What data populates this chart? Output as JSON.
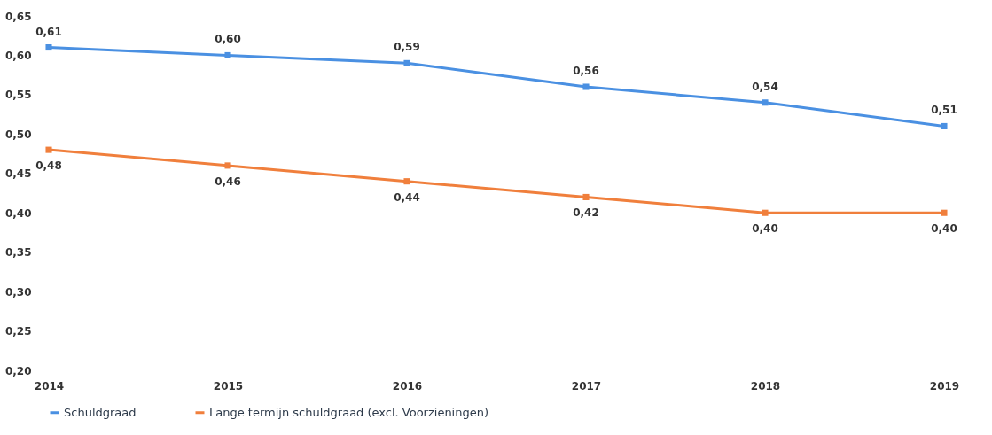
{
  "chart_data": {
    "type": "line",
    "categories": [
      "2014",
      "2015",
      "2016",
      "2017",
      "2018",
      "2019"
    ],
    "series": [
      {
        "name": "Schuldgraad",
        "color": "#4a90e2",
        "values": [
          0.61,
          0.6,
          0.59,
          0.56,
          0.54,
          0.51
        ],
        "value_labels": [
          "0,61",
          "0,60",
          "0,59",
          "0,56",
          "0,54",
          "0,51"
        ]
      },
      {
        "name": "Lange termijn schuldgraad (excl. Voorzieningen)",
        "color": "#f07f3c",
        "values": [
          0.48,
          0.46,
          0.44,
          0.42,
          0.4,
          0.4
        ],
        "value_labels": [
          "0,48",
          "0,46",
          "0,44",
          "0,42",
          "0,40",
          "0,40"
        ]
      }
    ],
    "ylim": [
      0.2,
      0.65
    ],
    "yticks": [
      {
        "value": 0.2,
        "label": "0,20"
      },
      {
        "value": 0.25,
        "label": "0,25"
      },
      {
        "value": 0.3,
        "label": "0,30"
      },
      {
        "value": 0.35,
        "label": "0,35"
      },
      {
        "value": 0.4,
        "label": "0,40"
      },
      {
        "value": 0.45,
        "label": "0,45"
      },
      {
        "value": 0.5,
        "label": "0,50"
      },
      {
        "value": 0.55,
        "label": "0,55"
      },
      {
        "value": 0.6,
        "label": "0,60"
      },
      {
        "value": 0.65,
        "label": "0,65"
      }
    ],
    "grid": false,
    "legend": "bottom",
    "marker": "square",
    "line_style": "solid"
  }
}
